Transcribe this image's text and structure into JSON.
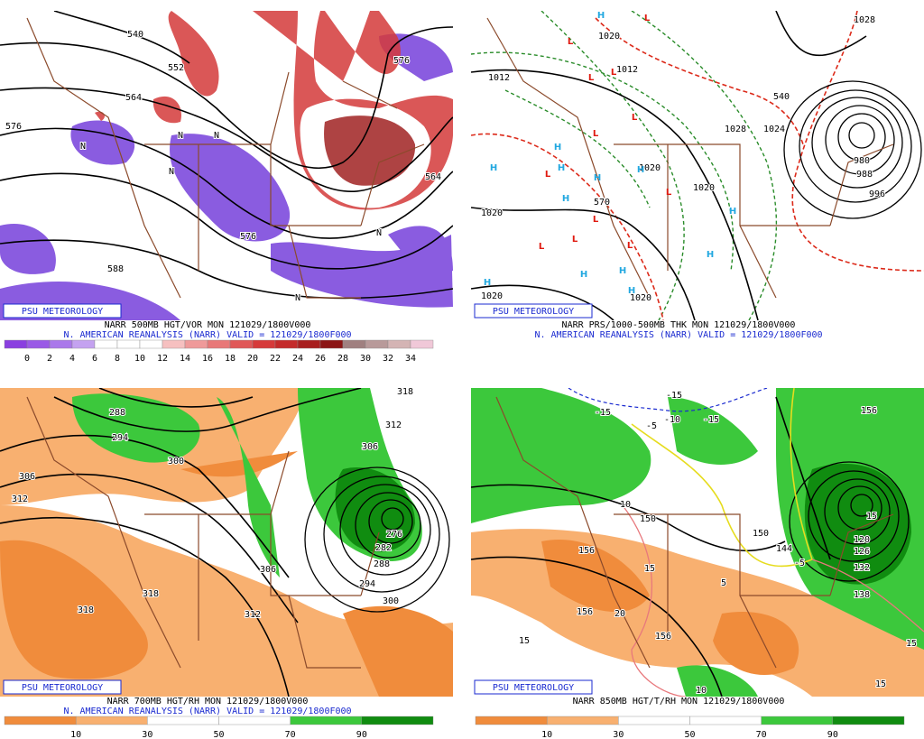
{
  "panels": [
    {
      "brand": "PSU METEOROLOGY",
      "caption": "NARR 500MB HGT/VOR MON 121029/1800V000",
      "subcaption": "N. AMERICAN REANALYSIS (NARR) VALID = 121029/1800F000",
      "colorbar": {
        "ticks": [
          0,
          2,
          4,
          6,
          8,
          10,
          12,
          14,
          16,
          18,
          20,
          22,
          24,
          26,
          28,
          30,
          32,
          34
        ],
        "colors": [
          "#8a3fe0",
          "#9a5ae6",
          "#aa78ea",
          "#c4a2f0",
          "#ffffff",
          "#ffffff",
          "#ffffff",
          "#f6c0c0",
          "#ef9a9a",
          "#e87878",
          "#e05858",
          "#d63a3a",
          "#c42a2a",
          "#a81e1e",
          "#8c1515",
          "#a08080",
          "#b89a9a",
          "#d4b4b4",
          "#f0c8d8"
        ]
      },
      "contour_labels": [
        "540",
        "552",
        "564",
        "576",
        "576",
        "588",
        "564",
        "576",
        "N",
        "N",
        "N",
        "N",
        "N",
        "N"
      ]
    },
    {
      "brand": "PSU METEOROLOGY",
      "caption": "NARR PRS/1000-500MB THK MON 121029/1800V000",
      "subcaption": "N. AMERICAN REANALYSIS (NARR) VALID = 121029/1800F000",
      "contour_labels": [
        "1012",
        "1020",
        "1012",
        "1028",
        "1024",
        "1020",
        "1020",
        "1020",
        "1020",
        "980",
        "988",
        "996",
        "1028",
        "570",
        "540",
        "1020"
      ],
      "highs": [
        "H",
        "H",
        "H",
        "H",
        "H",
        "H",
        "H",
        "H",
        "H",
        "H",
        "H",
        "H",
        "H"
      ],
      "lows": [
        "L",
        "L",
        "L",
        "L",
        "L",
        "L",
        "L",
        "L",
        "L",
        "L",
        "L",
        "L"
      ]
    },
    {
      "brand": "PSU METEOROLOGY",
      "caption": "NARR 700MB HGT/RH MON 121029/1800V000",
      "subcaption": "N. AMERICAN REANALYSIS (NARR) VALID = 121029/1800F000",
      "colorbar": {
        "ticks": [
          10,
          30,
          50,
          70,
          90
        ],
        "colors": [
          "#f08c3c",
          "#f8b070",
          "#ffffff",
          "#ffffff",
          "#3cc83c",
          "#108c10"
        ]
      },
      "contour_labels": [
        "288",
        "294",
        "300",
        "306",
        "312",
        "318",
        "318",
        "312",
        "306",
        "312",
        "318",
        "306",
        "276",
        "282",
        "288",
        "294",
        "300"
      ]
    },
    {
      "brand": "PSU METEOROLOGY",
      "caption": "NARR 850MB HGT/T/RH MON 121029/1800V000",
      "colorbar": {
        "ticks": [
          10,
          30,
          50,
          70,
          90
        ],
        "colors": [
          "#f08c3c",
          "#f8b070",
          "#ffffff",
          "#ffffff",
          "#3cc83c",
          "#108c10"
        ]
      },
      "contour_labels": [
        "-15",
        "-15",
        "-10",
        "-15",
        "-5",
        "150",
        "150",
        "156",
        "156",
        "156",
        "144",
        "-5",
        "120",
        "126",
        "132",
        "138",
        "156",
        "15",
        "15",
        "5",
        "10",
        "20",
        "15",
        "15",
        "15",
        "10"
      ]
    }
  ]
}
